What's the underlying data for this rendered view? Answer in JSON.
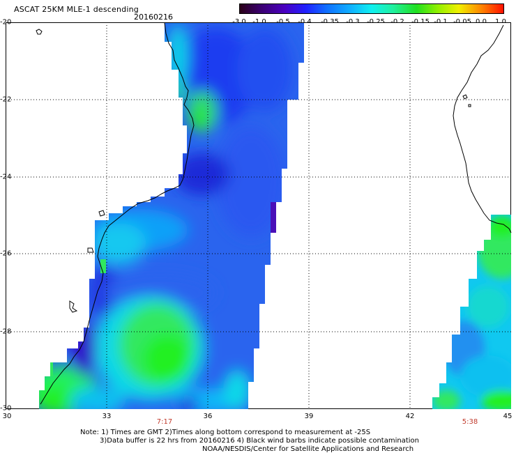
{
  "header": {
    "title": "ASCAT 25KM MLE-1 descending",
    "date": "20160216"
  },
  "colorbar": {
    "labels": [
      "-3.0",
      "-1.0",
      "-0.5",
      "-0.4",
      "-0.35",
      "-0.3",
      "-0.25",
      "-0.2",
      "-0.15",
      "-0.1",
      "-0.05",
      "0.0",
      "1.0"
    ],
    "colors": [
      "#2a0018",
      "#3a0066",
      "#4a00b0",
      "#2020ff",
      "#1060ff",
      "#10a0ff",
      "#10f0f0",
      "#20f0a0",
      "#20e020",
      "#90f000",
      "#f0f000",
      "#ff8000",
      "#ff2000"
    ]
  },
  "axes": {
    "lat_labels": [
      "-20",
      "-22",
      "-24",
      "-26",
      "-28",
      "-30"
    ],
    "lon_labels": [
      "30",
      "33",
      "36",
      "39",
      "42",
      "45"
    ]
  },
  "passes": [
    {
      "time": "7:17"
    },
    {
      "time": "5:38"
    }
  ],
  "notes": {
    "line1": "Note: 1) Times are GMT 2)Times along bottom correspond to measurement at -25S",
    "line2": "3)Data buffer is 22 hrs from 20160216 4) Black wind barbs indicate possible contamination",
    "line3": "NOAA/NESDIS/Center for Satellite Applications and Research"
  },
  "colors": {
    "deep_blue": "#1a3cf0",
    "mid_blue": "#2a6cf0",
    "light_blue": "#10a8f8",
    "cyan": "#10e8e8",
    "green": "#30e860",
    "bright_green": "#20f020",
    "purple": "#5a10c0"
  }
}
